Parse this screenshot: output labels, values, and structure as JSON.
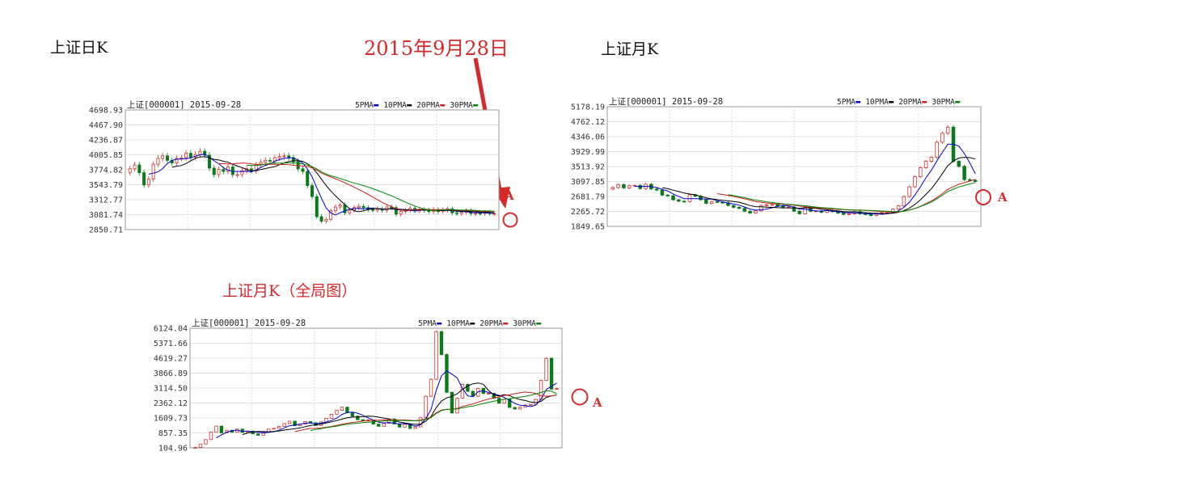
{
  "labels": {
    "daily_title": "上证日K",
    "monthly_title": "上证月K",
    "monthly_full_title": "上证月K（全局图）",
    "date_note": "2015年9月28日",
    "marker_a": "A"
  },
  "colors": {
    "accent_red": "#d42a2a",
    "ma5": "#0000cc",
    "ma10": "#000000",
    "ma20": "#cc2222",
    "ma30": "#008800",
    "up_candle": "#cc3333",
    "down_candle": "#0a7a1a",
    "grid": "#c8c8c8",
    "axis_text": "#333333"
  },
  "chart_data": [
    {
      "type": "candlestick",
      "title": "上证[000001] 2015-09-28",
      "legend": [
        "5PMA",
        "10PMA",
        "20PMA",
        "30PMA"
      ],
      "y_ticks": [
        "4698.93",
        "4467.90",
        "4236.87",
        "4005.85",
        "3774.82",
        "3543.79",
        "3312.77",
        "3081.74",
        "2850.71"
      ],
      "ylim": [
        2850.71,
        4698.93
      ],
      "closes": [
        3790,
        3850,
        3730,
        3540,
        3630,
        3860,
        3950,
        3990,
        3920,
        3880,
        3950,
        3960,
        4030,
        3970,
        4010,
        4060,
        4000,
        3800,
        3700,
        3780,
        3750,
        3820,
        3700,
        3700,
        3760,
        3790,
        3760,
        3850,
        3890,
        3920,
        3910,
        3960,
        3980,
        3990,
        3960,
        3900,
        3790,
        3750,
        3530,
        3360,
        3050,
        2980,
        3010,
        3140,
        3200,
        3230,
        3110,
        3150,
        3190,
        3210,
        3190,
        3160,
        3150,
        3170,
        3150,
        3200,
        3190,
        3090,
        3130,
        3150,
        3180,
        3140,
        3160,
        3150,
        3130,
        3160,
        3130,
        3150,
        3170,
        3110,
        3100,
        3120,
        3140,
        3100,
        3105,
        3100,
        3115,
        3100,
        3100
      ]
    },
    {
      "type": "candlestick",
      "title": "上证[000001] 2015-09-28",
      "legend": [
        "5PMA",
        "10PMA",
        "20PMA",
        "30PMA"
      ],
      "y_ticks": [
        "5178.19",
        "4762.12",
        "4346.06",
        "3929.99",
        "3513.92",
        "3097.85",
        "2681.79",
        "2265.72",
        "1849.65"
      ],
      "ylim": [
        1849.65,
        5178.19
      ],
      "closes": [
        2930,
        3010,
        2920,
        2980,
        2990,
        2900,
        3020,
        2890,
        2860,
        2720,
        2700,
        2590,
        2550,
        2540,
        2730,
        2690,
        2590,
        2490,
        2540,
        2520,
        2510,
        2430,
        2380,
        2350,
        2270,
        2220,
        2280,
        2430,
        2450,
        2460,
        2420,
        2380,
        2390,
        2270,
        2200,
        2380,
        2270,
        2280,
        2240,
        2290,
        2260,
        2220,
        2180,
        2200,
        2260,
        2200,
        2180,
        2150,
        2190,
        2230,
        2240,
        2330,
        2420,
        2680,
        2950,
        3230,
        3480,
        3660,
        3770,
        4190,
        4440,
        4610,
        3660,
        3520,
        3150,
        3130,
        3100
      ]
    },
    {
      "type": "candlestick",
      "title": "上证[000001] 2015-09-28",
      "legend": [
        "5PMA",
        "10PMA",
        "20PMA",
        "30PMA"
      ],
      "y_ticks": [
        "6124.04",
        "5371.66",
        "4619.27",
        "3866.89",
        "3114.50",
        "2362.12",
        "1609.73",
        "857.35",
        "104.96"
      ],
      "ylim": [
        104.96,
        6124.04
      ],
      "closes": [
        130,
        300,
        520,
        900,
        1200,
        860,
        990,
        890,
        1050,
        880,
        950,
        810,
        740,
        900,
        1050,
        1090,
        1180,
        1330,
        1450,
        1220,
        1310,
        1430,
        1370,
        1230,
        1410,
        1590,
        1800,
        1990,
        2150,
        1880,
        1700,
        1520,
        1460,
        1510,
        1300,
        1190,
        1340,
        1560,
        1310,
        1150,
        1290,
        1080,
        1160,
        1640,
        2700,
        3560,
        5950,
        4800,
        2900,
        1860,
        2600,
        3300,
        2950,
        2700,
        3100,
        2840,
        2850,
        2600,
        2350,
        2550,
        2140,
        2060,
        2150,
        2260,
        2290,
        2550,
        3500,
        4610,
        3060,
        3100
      ]
    }
  ]
}
